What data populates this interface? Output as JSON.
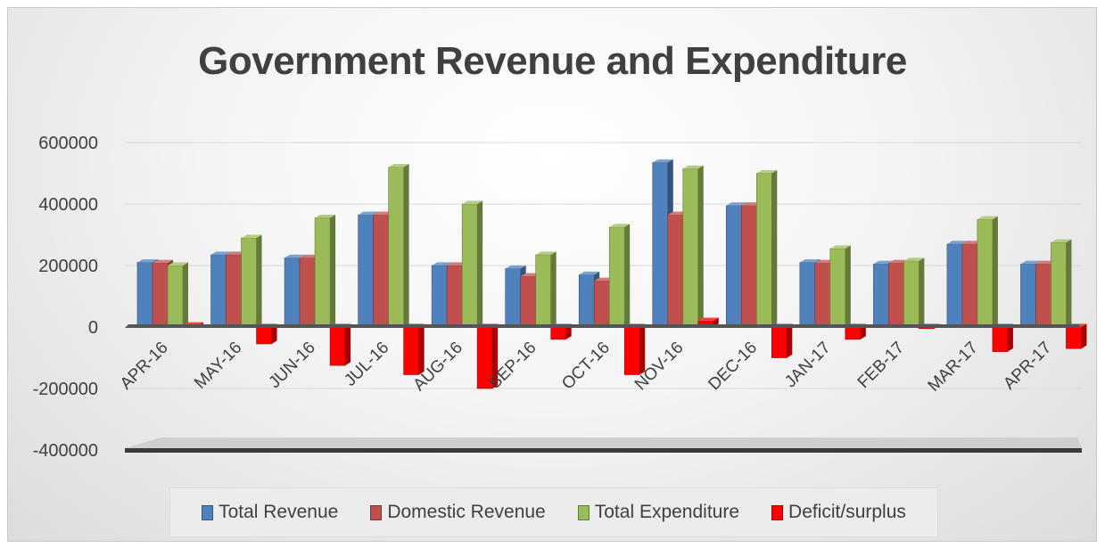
{
  "chart_data": {
    "type": "bar",
    "title": "Government Revenue and Expenditure",
    "xlabel": "",
    "ylabel": "",
    "ylim": [
      -400000,
      600000
    ],
    "yticks": [
      600000,
      400000,
      200000,
      0,
      -200000,
      -400000
    ],
    "ytick_labels": [
      "600000",
      "400000",
      "200000",
      "0",
      "-200000",
      "-400000"
    ],
    "categories": [
      "APR-16",
      "MAY-16",
      "JUN-16",
      "JUL-16",
      "AUG-16",
      "SEP-16",
      "OCT-16",
      "NOV-16",
      "DEC-16",
      "JAN-17",
      "FEB-17",
      "MAR-17",
      "APR-17"
    ],
    "series": [
      {
        "name": "Total Revenue",
        "color": "#4f81bd",
        "values": [
          210000,
          235000,
          225000,
          365000,
          200000,
          190000,
          170000,
          535000,
          395000,
          210000,
          205000,
          270000,
          205000
        ]
      },
      {
        "name": "Domestic Revenue",
        "color": "#c0504d",
        "values": [
          208000,
          235000,
          225000,
          365000,
          200000,
          165000,
          150000,
          365000,
          395000,
          208000,
          208000,
          270000,
          205000
        ]
      },
      {
        "name": "Total Expenditure",
        "color": "#9bbb59",
        "values": [
          200000,
          290000,
          355000,
          520000,
          400000,
          235000,
          325000,
          515000,
          500000,
          255000,
          215000,
          350000,
          275000
        ]
      },
      {
        "name": "Deficit/surplus",
        "color": "#ff0000",
        "values": [
          5000,
          -55000,
          -125000,
          -155000,
          -200000,
          -40000,
          -155000,
          20000,
          -100000,
          -40000,
          -5000,
          -80000,
          -70000
        ]
      }
    ],
    "legend_position": "bottom",
    "grid": true
  }
}
